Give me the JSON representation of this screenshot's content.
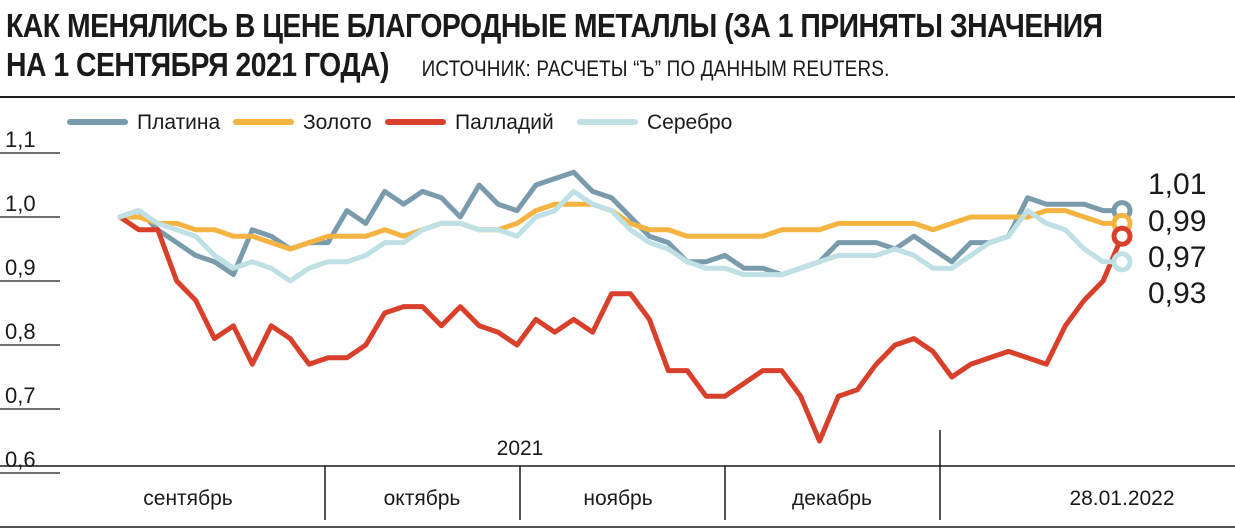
{
  "header": {
    "title_line1": "КАК МЕНЯЛИСЬ В ЦЕНЕ БЛАГОРОДНЫЕ МЕТАЛЛЫ (ЗА 1 ПРИНЯТЫ ЗНАЧЕНИЯ",
    "title_line2": "НА 1 СЕНТЯБРЯ 2021 ГОДА)",
    "source": "ИСТОЧНИК: РАСЧЕТЫ “Ъ” ПО ДАННЫМ REUTERS."
  },
  "chart_data": {
    "type": "line",
    "title": "КАК МЕНЯЛИСЬ В ЦЕНЕ БЛАГОРОДНЫЕ МЕТАЛЛЫ (ЗА 1 ПРИНЯТЫ ЗНАЧЕНИЯ НА 1 СЕНТЯБРЯ 2021 ГОДА)",
    "source": "ИСТОЧНИК: РАСЧЕТЫ “Ъ” ПО ДАННЫМ REUTERS.",
    "ylim": [
      0.6,
      1.1
    ],
    "yticks": [
      "0,6",
      "0,7",
      "0,8",
      "0,9",
      "1,0",
      "1,1"
    ],
    "ytick_values": [
      0.6,
      0.7,
      0.8,
      0.9,
      1.0,
      1.1
    ],
    "grid": false,
    "legend_position": "top",
    "year_label": "2021",
    "months": [
      "сентябрь",
      "октябрь",
      "ноябрь",
      "декабрь"
    ],
    "end_date": "28.01.2022",
    "x": [
      "01.09.2021",
      "03.09.2021",
      "07.09.2021",
      "09.09.2021",
      "13.09.2021",
      "15.09.2021",
      "17.09.2021",
      "21.09.2021",
      "23.09.2021",
      "27.09.2021",
      "29.09.2021",
      "01.10.2021",
      "05.10.2021",
      "07.10.2021",
      "11.10.2021",
      "13.10.2021",
      "15.10.2021",
      "19.10.2021",
      "21.10.2021",
      "25.10.2021",
      "27.10.2021",
      "29.10.2021",
      "02.11.2021",
      "04.11.2021",
      "08.11.2021",
      "10.11.2021",
      "12.11.2021",
      "16.11.2021",
      "18.11.2021",
      "22.11.2021",
      "24.11.2021",
      "26.11.2021",
      "30.11.2021",
      "02.12.2021",
      "06.12.2021",
      "08.12.2021",
      "10.12.2021",
      "14.12.2021",
      "16.12.2021",
      "20.12.2021",
      "22.12.2021",
      "24.12.2021",
      "28.12.2021",
      "30.12.2021",
      "04.01.2022",
      "06.01.2022",
      "10.01.2022",
      "12.01.2022",
      "14.01.2022",
      "18.01.2022",
      "20.01.2022",
      "24.01.2022",
      "26.01.2022",
      "28.01.2022"
    ],
    "series": [
      {
        "name": "Платина",
        "color": "#7a9bab",
        "end_label": "1,01",
        "values": [
          1.0,
          1.01,
          0.98,
          0.96,
          0.94,
          0.93,
          0.91,
          0.98,
          0.97,
          0.95,
          0.96,
          0.96,
          1.01,
          0.99,
          1.04,
          1.02,
          1.04,
          1.03,
          1.0,
          1.05,
          1.02,
          1.01,
          1.05,
          1.06,
          1.07,
          1.04,
          1.03,
          1.0,
          0.97,
          0.96,
          0.93,
          0.93,
          0.94,
          0.92,
          0.92,
          0.91,
          0.92,
          0.93,
          0.96,
          0.96,
          0.96,
          0.95,
          0.97,
          0.95,
          0.93,
          0.96,
          0.96,
          0.97,
          1.03,
          1.02,
          1.02,
          1.02,
          1.01,
          1.01
        ]
      },
      {
        "name": "Золото",
        "color": "#f5b342",
        "end_label": "0,99",
        "values": [
          1.0,
          1.0,
          0.99,
          0.99,
          0.98,
          0.98,
          0.97,
          0.97,
          0.96,
          0.95,
          0.96,
          0.97,
          0.97,
          0.97,
          0.98,
          0.97,
          0.98,
          0.99,
          0.99,
          0.98,
          0.98,
          0.99,
          1.01,
          1.02,
          1.02,
          1.02,
          1.01,
          0.99,
          0.98,
          0.98,
          0.97,
          0.97,
          0.97,
          0.97,
          0.97,
          0.98,
          0.98,
          0.98,
          0.99,
          0.99,
          0.99,
          0.99,
          0.99,
          0.98,
          0.99,
          1.0,
          1.0,
          1.0,
          1.0,
          1.01,
          1.01,
          1.0,
          0.99,
          0.99
        ]
      },
      {
        "name": "Палладий",
        "color": "#d9402b",
        "end_label": "0,97",
        "values": [
          1.0,
          0.98,
          0.98,
          0.9,
          0.87,
          0.81,
          0.83,
          0.77,
          0.83,
          0.81,
          0.77,
          0.78,
          0.78,
          0.8,
          0.85,
          0.86,
          0.86,
          0.83,
          0.86,
          0.83,
          0.82,
          0.8,
          0.84,
          0.82,
          0.84,
          0.82,
          0.88,
          0.88,
          0.84,
          0.76,
          0.76,
          0.72,
          0.72,
          0.74,
          0.76,
          0.76,
          0.72,
          0.65,
          0.72,
          0.73,
          0.77,
          0.8,
          0.81,
          0.79,
          0.75,
          0.77,
          0.78,
          0.79,
          0.78,
          0.77,
          0.83,
          0.87,
          0.9,
          0.97
        ]
      },
      {
        "name": "Серебро",
        "color": "#bfe0e4",
        "end_label": "0,93",
        "values": [
          1.0,
          1.01,
          0.99,
          0.98,
          0.97,
          0.94,
          0.92,
          0.93,
          0.92,
          0.9,
          0.92,
          0.93,
          0.93,
          0.94,
          0.96,
          0.96,
          0.98,
          0.99,
          0.99,
          0.98,
          0.98,
          0.97,
          1.0,
          1.01,
          1.04,
          1.02,
          1.01,
          0.98,
          0.96,
          0.95,
          0.93,
          0.92,
          0.92,
          0.91,
          0.91,
          0.91,
          0.92,
          0.93,
          0.94,
          0.94,
          0.94,
          0.95,
          0.94,
          0.92,
          0.92,
          0.94,
          0.96,
          0.97,
          1.01,
          0.99,
          0.98,
          0.95,
          0.93,
          0.93
        ]
      }
    ]
  }
}
